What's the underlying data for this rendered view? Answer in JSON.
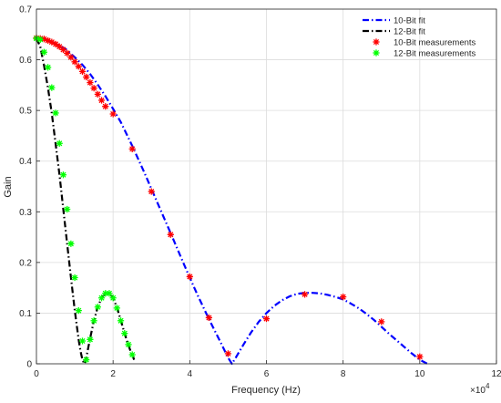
{
  "chart_data": {
    "type": "line",
    "title": "",
    "xlabel": "Frequency (Hz)",
    "ylabel": "Gain",
    "x_exponent_label": "×10",
    "x_exponent_power": "4",
    "xlim": [
      0,
      120000
    ],
    "ylim": [
      0,
      0.7
    ],
    "xticks": [
      0,
      20000,
      40000,
      60000,
      80000,
      100000,
      120000
    ],
    "xtick_labels": [
      "0",
      "2",
      "4",
      "6",
      "8",
      "10",
      "12"
    ],
    "yticks": [
      0,
      0.1,
      0.2,
      0.3,
      0.4,
      0.5,
      0.6,
      0.7
    ],
    "ytick_labels": [
      "0",
      "0.1",
      "0.2",
      "0.3",
      "0.4",
      "0.5",
      "0.6",
      "0.7"
    ],
    "grid": true,
    "legend_position": "top-right",
    "series": [
      {
        "name": "10-Bit fit",
        "kind": "line",
        "style": "dashdot",
        "color": "#0000ff",
        "x": [
          0,
          2000,
          4000,
          6000,
          8000,
          10000,
          12000,
          14000,
          16000,
          18000,
          20000,
          22000,
          25000,
          28000,
          30000,
          32000,
          35000,
          38000,
          40000,
          42000,
          45000,
          48000,
          50000,
          51000,
          52000,
          54000,
          56000,
          58000,
          60000,
          62000,
          64000,
          66000,
          68000,
          70000,
          72000,
          74000,
          76000,
          78000,
          80000,
          82000,
          84000,
          86000,
          88000,
          90000,
          92000,
          94000,
          96000,
          98000,
          100000,
          102000
        ],
        "y": [
          0.641,
          0.64,
          0.636,
          0.629,
          0.619,
          0.605,
          0.59,
          0.572,
          0.551,
          0.528,
          0.503,
          0.477,
          0.43,
          0.38,
          0.345,
          0.31,
          0.258,
          0.205,
          0.17,
          0.136,
          0.088,
          0.043,
          0.012,
          0.0,
          0.012,
          0.038,
          0.062,
          0.083,
          0.1,
          0.114,
          0.125,
          0.133,
          0.138,
          0.14,
          0.14,
          0.139,
          0.136,
          0.132,
          0.127,
          0.119,
          0.11,
          0.099,
          0.087,
          0.073,
          0.059,
          0.046,
          0.033,
          0.02,
          0.008,
          0.0
        ]
      },
      {
        "name": "12-Bit fit",
        "kind": "line",
        "style": "dashdot",
        "color": "#000000",
        "x": [
          0,
          1000,
          2000,
          3000,
          4000,
          5000,
          6000,
          7000,
          8000,
          9000,
          10000,
          11000,
          11500,
          12000,
          12500,
          13000,
          14000,
          15000,
          16000,
          17000,
          18000,
          19000,
          20000,
          21000,
          22000,
          23000,
          24000,
          25000,
          25500
        ],
        "y": [
          0.642,
          0.626,
          0.588,
          0.545,
          0.495,
          0.435,
          0.373,
          0.305,
          0.237,
          0.17,
          0.105,
          0.048,
          0.025,
          0.008,
          0.0,
          0.012,
          0.05,
          0.085,
          0.112,
          0.13,
          0.139,
          0.139,
          0.13,
          0.111,
          0.086,
          0.06,
          0.036,
          0.017,
          0.008
        ]
      },
      {
        "name": "10-Bit measurements",
        "kind": "markers",
        "marker": "star",
        "color": "#ff0000",
        "x": [
          0,
          1000,
          2000,
          3000,
          4000,
          5000,
          6000,
          7000,
          8000,
          9000,
          10000,
          11000,
          12000,
          13000,
          14000,
          15000,
          16000,
          17000,
          18000,
          20000,
          25000,
          30000,
          35000,
          40000,
          45000,
          50000,
          60000,
          70000,
          80000,
          90000,
          100000
        ],
        "y": [
          0.643,
          0.642,
          0.641,
          0.638,
          0.635,
          0.631,
          0.626,
          0.62,
          0.613,
          0.605,
          0.596,
          0.587,
          0.577,
          0.566,
          0.555,
          0.544,
          0.532,
          0.52,
          0.508,
          0.493,
          0.424,
          0.34,
          0.255,
          0.172,
          0.091,
          0.02,
          0.089,
          0.137,
          0.132,
          0.083,
          0.014
        ]
      },
      {
        "name": "12-Bit measurements",
        "kind": "markers",
        "marker": "star",
        "color": "#00ff00",
        "x": [
          0,
          1000,
          2000,
          3000,
          4000,
          5000,
          6000,
          7000,
          8000,
          9000,
          10000,
          11000,
          12000,
          13000,
          14000,
          15000,
          16000,
          17000,
          18000,
          19000,
          20000,
          21000,
          22000,
          23000,
          24000,
          25000
        ],
        "y": [
          0.642,
          0.64,
          0.615,
          0.585,
          0.545,
          0.495,
          0.435,
          0.373,
          0.305,
          0.237,
          0.17,
          0.105,
          0.045,
          0.008,
          0.048,
          0.085,
          0.112,
          0.13,
          0.139,
          0.139,
          0.13,
          0.11,
          0.085,
          0.06,
          0.038,
          0.018
        ]
      }
    ]
  }
}
